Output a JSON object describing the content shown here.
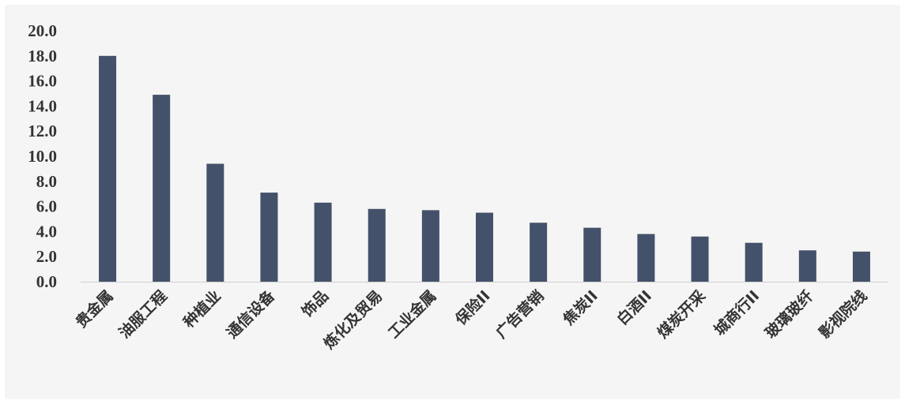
{
  "chart_data": {
    "type": "bar",
    "title": "",
    "xlabel": "",
    "ylabel": "",
    "ylim": [
      0,
      20
    ],
    "ytick_labels": [
      "0.0",
      "2.0",
      "4.0",
      "6.0",
      "8.0",
      "10.0",
      "12.0",
      "14.0",
      "16.0",
      "18.0",
      "20.0"
    ],
    "grid": false,
    "legend": "none",
    "bar_color": "#44516a",
    "categories": [
      "贵金属",
      "油服工程",
      "种植业",
      "通信设备",
      "饰品",
      "炼化及贸易",
      "工业金属",
      "保险II",
      "广告营销",
      "焦炭II",
      "白酒II",
      "煤炭开采",
      "城商行II",
      "玻璃玻纤",
      "影视院线"
    ],
    "values": [
      18.0,
      14.9,
      9.4,
      7.1,
      6.3,
      5.8,
      5.7,
      5.5,
      4.7,
      4.3,
      3.8,
      3.6,
      3.1,
      2.5,
      2.4
    ]
  }
}
